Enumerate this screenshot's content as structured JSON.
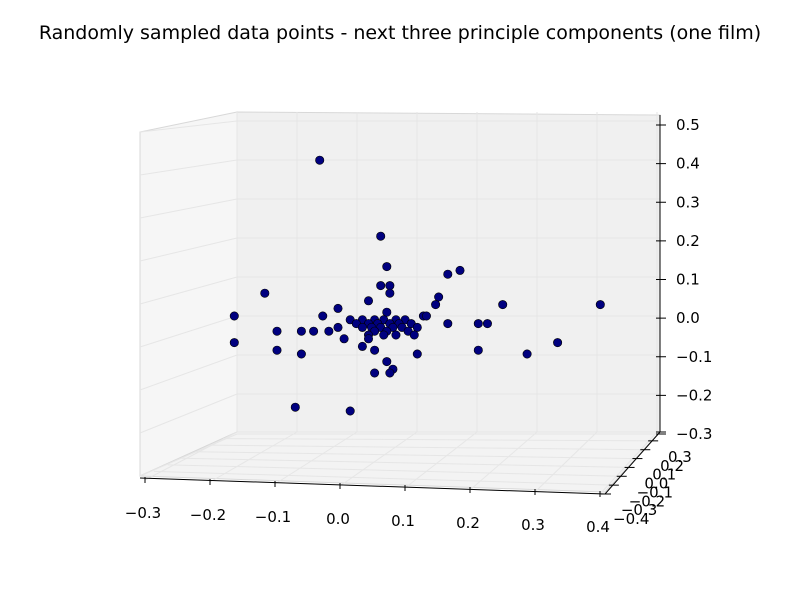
{
  "chart_data": {
    "type": "scatter",
    "title": "Randomly sampled data points - next three principle components (one film)",
    "xlabel": "",
    "ylabel": "",
    "zlabel": "",
    "xlim": [
      -0.3,
      0.4
    ],
    "ylim": [
      -0.4,
      0.3
    ],
    "zlim": [
      -0.3,
      0.5
    ],
    "grid": true,
    "x_ticks": [
      "−0.3",
      "−0.2",
      "−0.1",
      "0.0",
      "0.1",
      "0.2",
      "0.3",
      "0.4"
    ],
    "y_ticks": [
      "−0.4",
      "−0.3",
      "−0.2",
      "−0.1",
      "0.0",
      "0.1",
      "0.2",
      "0.3"
    ],
    "z_ticks": [
      "−0.3",
      "−0.2",
      "−0.1",
      "0.0",
      "0.1",
      "0.2",
      "0.3",
      "0.4",
      "0.5"
    ],
    "marker_color": "#00007f",
    "points": [
      {
        "x": -0.03,
        "y": 0.0,
        "z": 0.41
      },
      {
        "x": 0.07,
        "y": 0.0,
        "z": 0.21
      },
      {
        "x": 0.08,
        "y": 0.0,
        "z": 0.13
      },
      {
        "x": 0.18,
        "y": 0.0,
        "z": 0.11
      },
      {
        "x": 0.2,
        "y": 0.0,
        "z": 0.12
      },
      {
        "x": 0.07,
        "y": 0.0,
        "z": 0.08
      },
      {
        "x": 0.085,
        "y": 0.0,
        "z": 0.08
      },
      {
        "x": 0.085,
        "y": 0.0,
        "z": 0.06
      },
      {
        "x": -0.12,
        "y": 0.0,
        "z": 0.06
      },
      {
        "x": 0.165,
        "y": 0.0,
        "z": 0.05
      },
      {
        "x": 0.05,
        "y": 0.0,
        "z": 0.04
      },
      {
        "x": 0.16,
        "y": 0.0,
        "z": 0.03
      },
      {
        "x": 0.27,
        "y": 0.0,
        "z": 0.03
      },
      {
        "x": 0.43,
        "y": 0.0,
        "z": 0.03
      },
      {
        "x": -0.17,
        "y": 0.0,
        "z": 0.0
      },
      {
        "x": 0.0,
        "y": 0.0,
        "z": 0.02
      },
      {
        "x": -0.025,
        "y": 0.0,
        "z": 0.0
      },
      {
        "x": 0.08,
        "y": 0.0,
        "z": 0.01
      },
      {
        "x": 0.14,
        "y": 0.0,
        "z": 0.0
      },
      {
        "x": 0.145,
        "y": 0.0,
        "z": 0.0
      },
      {
        "x": 0.23,
        "y": 0.0,
        "z": -0.02
      },
      {
        "x": 0.245,
        "y": 0.0,
        "z": -0.02
      },
      {
        "x": 0.18,
        "y": 0.0,
        "z": -0.02
      },
      {
        "x": 0.02,
        "y": 0.0,
        "z": -0.01
      },
      {
        "x": 0.04,
        "y": 0.0,
        "z": -0.01
      },
      {
        "x": 0.06,
        "y": 0.0,
        "z": -0.01
      },
      {
        "x": 0.075,
        "y": 0.0,
        "z": -0.01
      },
      {
        "x": 0.095,
        "y": 0.0,
        "z": -0.01
      },
      {
        "x": 0.11,
        "y": 0.0,
        "z": -0.01
      },
      {
        "x": 0.03,
        "y": 0.0,
        "z": -0.02
      },
      {
        "x": 0.05,
        "y": 0.0,
        "z": -0.02
      },
      {
        "x": 0.065,
        "y": 0.0,
        "z": -0.02
      },
      {
        "x": 0.085,
        "y": 0.0,
        "z": -0.02
      },
      {
        "x": 0.1,
        "y": 0.0,
        "z": -0.02
      },
      {
        "x": 0.12,
        "y": 0.0,
        "z": -0.02
      },
      {
        "x": 0.0,
        "y": 0.0,
        "z": -0.03
      },
      {
        "x": 0.04,
        "y": 0.0,
        "z": -0.03
      },
      {
        "x": 0.055,
        "y": 0.0,
        "z": -0.03
      },
      {
        "x": 0.07,
        "y": 0.0,
        "z": -0.03
      },
      {
        "x": 0.09,
        "y": 0.0,
        "z": -0.03
      },
      {
        "x": 0.105,
        "y": 0.0,
        "z": -0.03
      },
      {
        "x": 0.13,
        "y": 0.0,
        "z": -0.03
      },
      {
        "x": -0.015,
        "y": 0.0,
        "z": -0.04
      },
      {
        "x": 0.06,
        "y": 0.0,
        "z": -0.04
      },
      {
        "x": 0.08,
        "y": 0.0,
        "z": -0.04
      },
      {
        "x": 0.115,
        "y": 0.0,
        "z": -0.04
      },
      {
        "x": -0.1,
        "y": 0.0,
        "z": -0.04
      },
      {
        "x": -0.04,
        "y": 0.0,
        "z": -0.04
      },
      {
        "x": -0.06,
        "y": 0.0,
        "z": -0.04
      },
      {
        "x": 0.05,
        "y": 0.0,
        "z": -0.05
      },
      {
        "x": 0.075,
        "y": 0.0,
        "z": -0.05
      },
      {
        "x": 0.095,
        "y": 0.0,
        "z": -0.05
      },
      {
        "x": 0.125,
        "y": 0.0,
        "z": -0.05
      },
      {
        "x": 0.01,
        "y": 0.0,
        "z": -0.06
      },
      {
        "x": 0.05,
        "y": 0.0,
        "z": -0.06
      },
      {
        "x": -0.17,
        "y": 0.0,
        "z": -0.07
      },
      {
        "x": 0.04,
        "y": 0.0,
        "z": -0.08
      },
      {
        "x": 0.06,
        "y": 0.0,
        "z": -0.09
      },
      {
        "x": 0.13,
        "y": 0.0,
        "z": -0.1
      },
      {
        "x": 0.23,
        "y": 0.0,
        "z": -0.09
      },
      {
        "x": 0.31,
        "y": 0.0,
        "z": -0.1
      },
      {
        "x": 0.36,
        "y": 0.0,
        "z": -0.07
      },
      {
        "x": -0.1,
        "y": 0.0,
        "z": -0.09
      },
      {
        "x": -0.06,
        "y": 0.0,
        "z": -0.1
      },
      {
        "x": 0.08,
        "y": 0.0,
        "z": -0.12
      },
      {
        "x": 0.06,
        "y": 0.0,
        "z": -0.15
      },
      {
        "x": 0.09,
        "y": 0.0,
        "z": -0.14
      },
      {
        "x": 0.085,
        "y": 0.0,
        "z": -0.15
      },
      {
        "x": -0.07,
        "y": 0.0,
        "z": -0.24
      },
      {
        "x": 0.02,
        "y": 0.0,
        "z": -0.25
      }
    ]
  }
}
